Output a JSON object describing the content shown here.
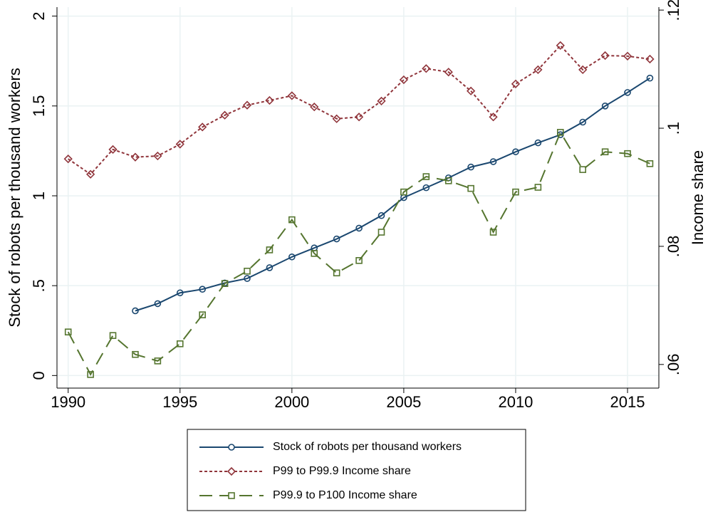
{
  "chart_data": {
    "type": "line",
    "x": [
      1990,
      1991,
      1992,
      1993,
      1994,
      1995,
      1996,
      1997,
      1998,
      1999,
      2000,
      2001,
      2002,
      2003,
      2004,
      2005,
      2006,
      2007,
      2008,
      2009,
      2010,
      2011,
      2012,
      2013,
      2014,
      2015,
      2016
    ],
    "xlim": [
      1989.5,
      2016.4
    ],
    "xticks": [
      1990,
      1995,
      2000,
      2005,
      2010,
      2015
    ],
    "ylim": [
      -0.07,
      2.05
    ],
    "yticks": [
      0,
      {
        "value": 0.5,
        "label": ".5"
      },
      1,
      1.5,
      2
    ],
    "y2lim": [
      0.056,
      0.1205
    ],
    "y2ticks": [
      {
        "value": 0.06,
        "label": ".06"
      },
      {
        "value": 0.08,
        "label": ".08"
      },
      {
        "value": 0.1,
        "label": ".1"
      },
      {
        "value": 0.12,
        "label": ".12"
      }
    ],
    "ylabel": "Stock of robots per thousand workers",
    "y2label": "Income share",
    "grid": true,
    "legend": "bottom",
    "series": [
      {
        "name": "Stock of robots per thousand workers",
        "color": "#1a476f",
        "linestyle": "solid",
        "marker": "circle",
        "values": [
          null,
          null,
          null,
          0.36,
          0.4,
          0.46,
          0.48,
          0.515,
          0.54,
          0.6,
          0.66,
          0.71,
          0.76,
          0.82,
          0.89,
          0.99,
          1.045,
          1.1,
          1.16,
          1.19,
          1.245,
          1.295,
          1.34,
          1.41,
          1.5,
          1.575,
          1.655
        ]
      },
      {
        "name": "P99 to P99.9 Income share",
        "color": "#90353b",
        "linestyle": "dotted",
        "marker": "diamond",
        "axis": "y2",
        "values": [
          0.0948,
          0.0922,
          0.0964,
          0.0951,
          0.0953,
          0.0973,
          0.1002,
          0.1022,
          0.1039,
          0.1047,
          0.1055,
          0.1036,
          0.1016,
          0.1019,
          0.1046,
          0.1082,
          0.1101,
          0.1095,
          0.1063,
          0.1019,
          0.1075,
          0.1099,
          0.114,
          0.1099,
          0.1123,
          0.1122,
          0.1117
        ]
      },
      {
        "name": "P99.9 to P100 Income share",
        "color": "#55752f",
        "linestyle": "dashed",
        "marker": "square",
        "axis": "y2",
        "values": [
          0.0655,
          0.0583,
          0.0649,
          0.0617,
          0.0606,
          0.0635,
          0.0684,
          0.0737,
          0.0758,
          0.0794,
          0.0845,
          0.0788,
          0.0755,
          0.0776,
          0.0824,
          0.0892,
          0.0918,
          0.0911,
          0.0898,
          0.0824,
          0.0892,
          0.09,
          0.0993,
          0.093,
          0.096,
          0.0957,
          0.094
        ]
      }
    ]
  }
}
